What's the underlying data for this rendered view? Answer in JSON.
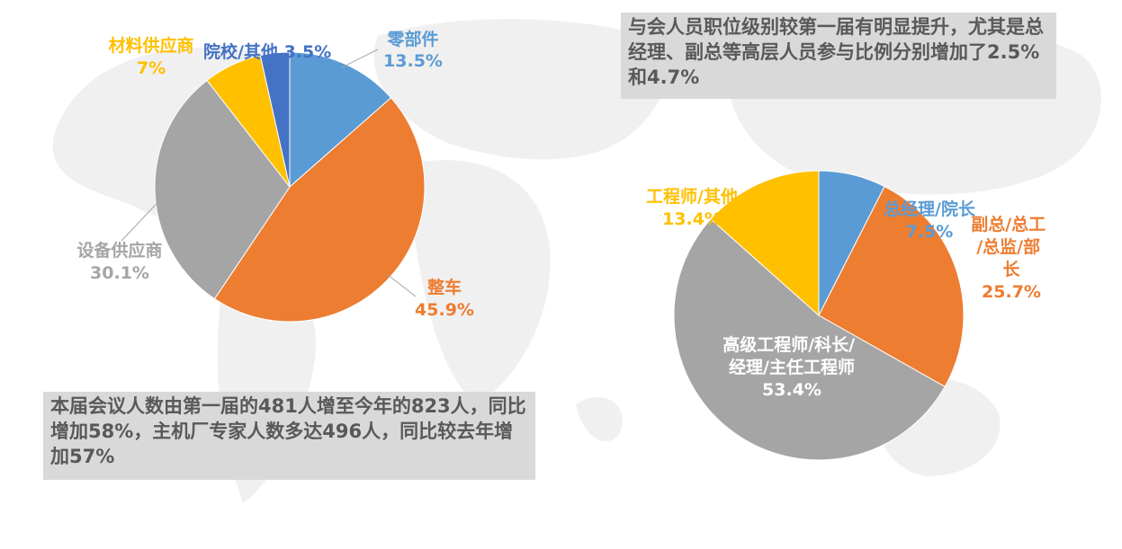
{
  "notes": {
    "left": "本届会议人数由第一届的481人增至今年的823人，同比增加58%，主机厂专家人数多达496人，同比较去年增加57%",
    "right": "与会人员职位级别较第一届有明显提升，尤其是总经理、副总等高层人员参与比例分别增加了2.5%和4.7%"
  },
  "chart_data": [
    {
      "type": "pie",
      "start_angle_deg": 0,
      "direction": "clockwise",
      "slices": [
        {
          "label": "零部件",
          "value": 13.5,
          "value_text": "13.5%",
          "color": "#5b9bd5",
          "label_color": "#5b9bd5"
        },
        {
          "label": "整车",
          "value": 45.9,
          "value_text": "45.9%",
          "color": "#ed7d31",
          "label_color": "#ed7d31"
        },
        {
          "label": "设备供应商",
          "value": 30.1,
          "value_text": "30.1%",
          "color": "#a5a5a5",
          "label_color": "#a5a5a5"
        },
        {
          "label": "材料供应商",
          "value": 7,
          "value_text": "7%",
          "color": "#ffc000",
          "label_color": "#ffc000"
        },
        {
          "label": "院校/其他",
          "value": 3.5,
          "value_text": "3.5%",
          "color": "#4472c4",
          "label_color": "#4472c4"
        }
      ]
    },
    {
      "type": "pie",
      "start_angle_deg": 0,
      "direction": "clockwise",
      "slices": [
        {
          "label": "总经理/院长",
          "value": 7.5,
          "value_text": "7.5%",
          "color": "#5b9bd5",
          "label_color": "#5b9bd5"
        },
        {
          "label": "副总/总工/总监/部长",
          "value": 25.7,
          "value_text": "25.7%",
          "color": "#ed7d31",
          "label_color": "#ed7d31"
        },
        {
          "label": "高级工程师/科长/经理/主任工程师",
          "value": 53.4,
          "value_text": "53.4%",
          "color": "#a5a5a5",
          "label_color": "#ffffff"
        },
        {
          "label": "工程师/其他",
          "value": 13.4,
          "value_text": "13.4%",
          "color": "#ffc000",
          "label_color": "#ffc000"
        }
      ]
    }
  ]
}
